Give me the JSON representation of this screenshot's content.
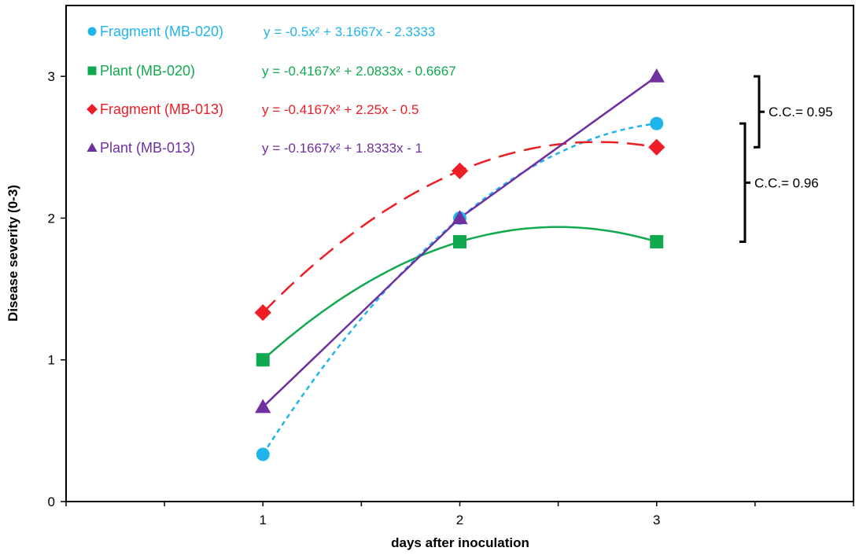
{
  "chart_data": {
    "type": "line",
    "title": "",
    "xlabel": "days after inoculation",
    "ylabel": "Disease severity (0-3)",
    "x": [
      1,
      2,
      3
    ],
    "x_tick_labels": [
      "1",
      "2",
      "3"
    ],
    "y_tick_labels": [
      "0",
      "1",
      "2",
      "3"
    ],
    "xlim": [
      0,
      4
    ],
    "ylim": [
      0,
      3.5
    ],
    "grid": false,
    "legend_position": "top-left",
    "series": [
      {
        "name": "Fragment (MB-020)",
        "values": [
          0.333,
          2.0,
          2.667
        ],
        "color": "#1fb5ea",
        "marker": "circle",
        "line_style": "dotted",
        "equation": "y = -0.5x² + 3.1667x - 2.3333",
        "coefficients": [
          -0.5,
          3.1667,
          -2.3333
        ]
      },
      {
        "name": "Plant (MB-020)",
        "values": [
          1.0,
          1.833,
          1.833
        ],
        "color": "#11a94f",
        "marker": "square",
        "line_style": "solid",
        "equation": "y = -0.4167x² + 2.0833x - 0.6667",
        "coefficients": [
          -0.4167,
          2.0833,
          -0.6667
        ]
      },
      {
        "name": "Fragment (MB-013)",
        "values": [
          1.333,
          2.333,
          2.5
        ],
        "color": "#ee1c24",
        "marker": "diamond",
        "line_style": "dashed",
        "equation": "y = -0.4167x² + 2.25x - 0.5",
        "coefficients": [
          -0.4167,
          2.25,
          -0.5
        ]
      },
      {
        "name": "Plant (MB-013)",
        "values": [
          0.667,
          2.0,
          3.0
        ],
        "color": "#7030a0",
        "marker": "triangle",
        "line_style": "solid",
        "equation": "y = -0.1667x² + 1.8333x - 1",
        "coefficients": [
          -0.1667,
          1.8333,
          -1
        ]
      }
    ],
    "annotations": [
      {
        "text": "C.C.= 0.95",
        "y_range": [
          2.5,
          3.0
        ]
      },
      {
        "text": "C.C.= 0.96",
        "y_range": [
          1.833,
          2.667
        ]
      }
    ]
  }
}
